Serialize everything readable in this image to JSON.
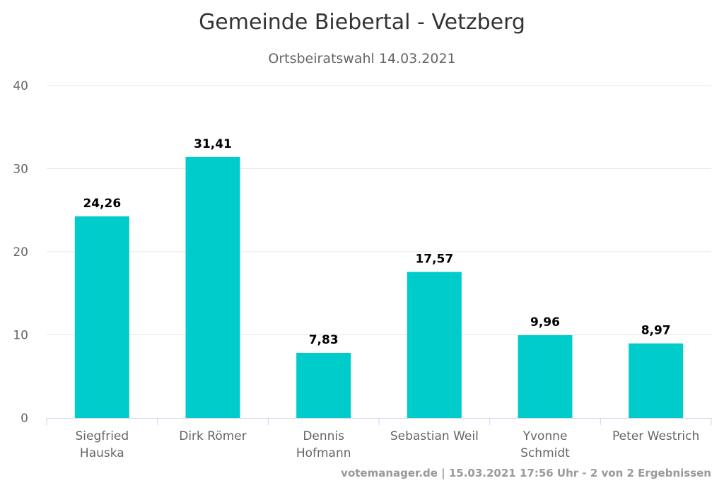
{
  "chart_data": {
    "type": "bar",
    "title": "Gemeinde Biebertal - Vetzberg",
    "subtitle": "Ortsbeiratswahl 14.03.2021",
    "categories": [
      [
        "Siegfried",
        "Hauska"
      ],
      [
        "Dirk Römer"
      ],
      [
        "Dennis",
        "Hofmann"
      ],
      [
        "Sebastian Weil"
      ],
      [
        "Yvonne",
        "Schmidt"
      ],
      [
        "Peter Westrich"
      ]
    ],
    "values": [
      24.26,
      31.41,
      7.83,
      17.57,
      9.96,
      8.97
    ],
    "value_labels": [
      "24,26",
      "31,41",
      "7,83",
      "17,57",
      "9,96",
      "8,97"
    ],
    "yticks": [
      0,
      10,
      20,
      30,
      40
    ],
    "ylim": [
      0,
      40
    ],
    "grid": true,
    "bar_color": "#00cccc",
    "credits": "votemanager.de | 15.03.2021 17:56 Uhr - 2 von 2 Ergebnissen"
  }
}
